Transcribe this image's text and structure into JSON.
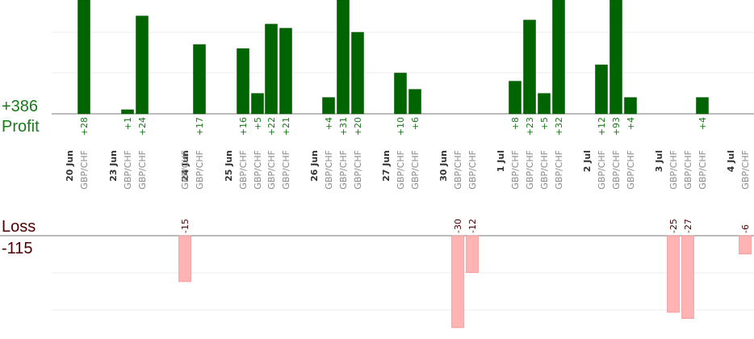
{
  "summary": {
    "profit_total": "+386",
    "profit_label": "Profit",
    "loss_label": "Loss",
    "loss_total": "-115"
  },
  "colors": {
    "profit_bar": "#006400",
    "profit_bar_edge": "#004d00",
    "profit_text": "#1a7a1a",
    "loss_bar": "#ffb3b3",
    "loss_bar_edge": "#ee8888",
    "loss_text": "#4a0000",
    "grid": "#ececec",
    "axis": "#777777"
  },
  "chart_data": {
    "type": "bar",
    "profit_series": {
      "name": "Profit",
      "values": [
        28,
        1,
        24,
        17,
        16,
        5,
        22,
        21,
        4,
        31,
        20,
        10,
        6,
        8,
        23,
        5,
        32,
        12,
        93,
        4,
        4
      ],
      "labels": [
        "+28",
        "+1",
        "+24",
        "+17",
        "+16",
        "+5",
        "+22",
        "+21",
        "+4",
        "+31",
        "+20",
        "+10",
        "+6",
        "+8",
        "+23",
        "+5",
        "+32",
        "+12",
        "+93",
        "+4",
        "+4"
      ]
    },
    "loss_series": {
      "name": "Loss",
      "values": [
        -15,
        -30,
        -12,
        -25,
        -27,
        -6
      ],
      "labels": [
        "-15",
        "-30",
        "-12",
        "-25",
        "-27",
        "-6"
      ]
    },
    "trades": [
      {
        "date": "20 Jun",
        "pair": "GBP/CHF",
        "side": "profit",
        "value": 28
      },
      {
        "date": "23 Jun",
        "pair": "GBP/CHF",
        "side": "profit",
        "value": 1
      },
      {
        "date": "",
        "pair": "GBP/CHF",
        "side": "profit",
        "value": 24
      },
      {
        "date": "24 Jun",
        "pair": "GBP/CHF",
        "side": "profit",
        "value": 17
      },
      {
        "date": "",
        "pair": "GBP/CHF",
        "side": "loss",
        "value": -15
      },
      {
        "date": "25 Jun",
        "pair": "GBP/CHF",
        "side": "profit",
        "value": 16
      },
      {
        "date": "",
        "pair": "GBP/CHF",
        "side": "profit",
        "value": 5
      },
      {
        "date": "",
        "pair": "GBP/CHF",
        "side": "profit",
        "value": 22
      },
      {
        "date": "",
        "pair": "GBP/CHF",
        "side": "profit",
        "value": 21
      },
      {
        "date": "26 Jun",
        "pair": "GBP/CHF",
        "side": "profit",
        "value": 4
      },
      {
        "date": "",
        "pair": "GBP/CHF",
        "side": "profit",
        "value": 31
      },
      {
        "date": "",
        "pair": "GBP/CHF",
        "side": "profit",
        "value": 20
      },
      {
        "date": "27 Jun",
        "pair": "GBP/CHF",
        "side": "profit",
        "value": 10
      },
      {
        "date": "",
        "pair": "GBP/CHF",
        "side": "profit",
        "value": 6
      },
      {
        "date": "30 Jun",
        "pair": "GBP/CHF",
        "side": "loss",
        "value": -30
      },
      {
        "date": "",
        "pair": "GBP/CHF",
        "side": "loss",
        "value": -12
      },
      {
        "date": "1 Jul",
        "pair": "GBP/CHF",
        "side": "profit",
        "value": 8
      },
      {
        "date": "",
        "pair": "GBP/CHF",
        "side": "profit",
        "value": 23
      },
      {
        "date": "",
        "pair": "GBP/CHF",
        "side": "profit",
        "value": 5
      },
      {
        "date": "",
        "pair": "GBP/CHF",
        "side": "profit",
        "value": 32
      },
      {
        "date": "2 Jul",
        "pair": "GBP/CHF",
        "side": "profit",
        "value": 12
      },
      {
        "date": "",
        "pair": "GBP/CHF",
        "side": "profit",
        "value": 93
      },
      {
        "date": "",
        "pair": "GBP/CHF",
        "side": "profit",
        "value": 4
      },
      {
        "date": "3 Jul",
        "pair": "GBP/CHF",
        "side": "loss",
        "value": -25
      },
      {
        "date": "",
        "pair": "GBP/CHF",
        "side": "loss",
        "value": -27
      },
      {
        "date": "",
        "pair": "GBP/CHF",
        "side": "profit",
        "value": 4
      },
      {
        "date": "4 Jul",
        "pair": "GBP/CHF",
        "side": "loss",
        "value": -6
      }
    ],
    "profit_scale": {
      "display_range": [
        0,
        28
      ],
      "grid": true
    },
    "loss_scale": {
      "display_range": [
        -30,
        0
      ],
      "grid": true
    }
  }
}
